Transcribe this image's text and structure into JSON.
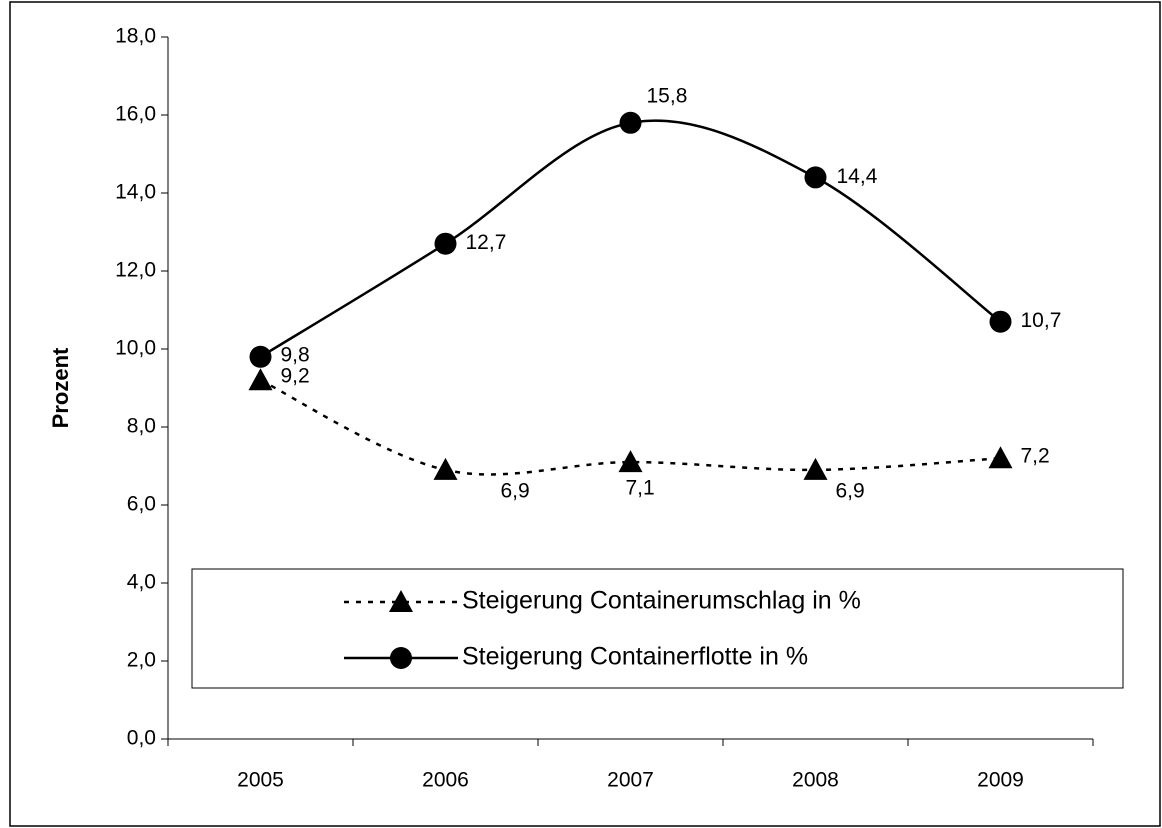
{
  "chart_data": {
    "type": "line",
    "y_label": "Prozent",
    "categories": [
      "2005",
      "2006",
      "2007",
      "2008",
      "2009"
    ],
    "series": [
      {
        "name": "Steigerung Containerumschlag in %",
        "color": "#000000",
        "dash": true,
        "marker": "triangle",
        "values": [
          9.2,
          6.9,
          7.1,
          6.9,
          7.2
        ],
        "value_labels": [
          "9,2",
          "6,9",
          "7,1",
          "6,9",
          "7,2"
        ]
      },
      {
        "name": "Steigerung Containerflotte in %",
        "color": "#000000",
        "dash": false,
        "marker": "circle",
        "values": [
          9.8,
          12.7,
          15.8,
          14.4,
          10.7
        ],
        "value_labels": [
          "9,8",
          "12,7",
          "15,8",
          "14,4",
          "10,7"
        ]
      }
    ],
    "smooth": true,
    "ylim": [
      0,
      18
    ],
    "yticks": [
      {
        "value": 0,
        "label": "0,0"
      },
      {
        "value": 2,
        "label": "2,0"
      },
      {
        "value": 4,
        "label": "4,0"
      },
      {
        "value": 6,
        "label": "6,0"
      },
      {
        "value": 8,
        "label": "8,0"
      },
      {
        "value": 10,
        "label": "10,0"
      },
      {
        "value": 12,
        "label": "12,0"
      },
      {
        "value": 14,
        "label": "14,0"
      },
      {
        "value": 16,
        "label": "16,0"
      },
      {
        "value": 18,
        "label": "18,0"
      }
    ]
  }
}
